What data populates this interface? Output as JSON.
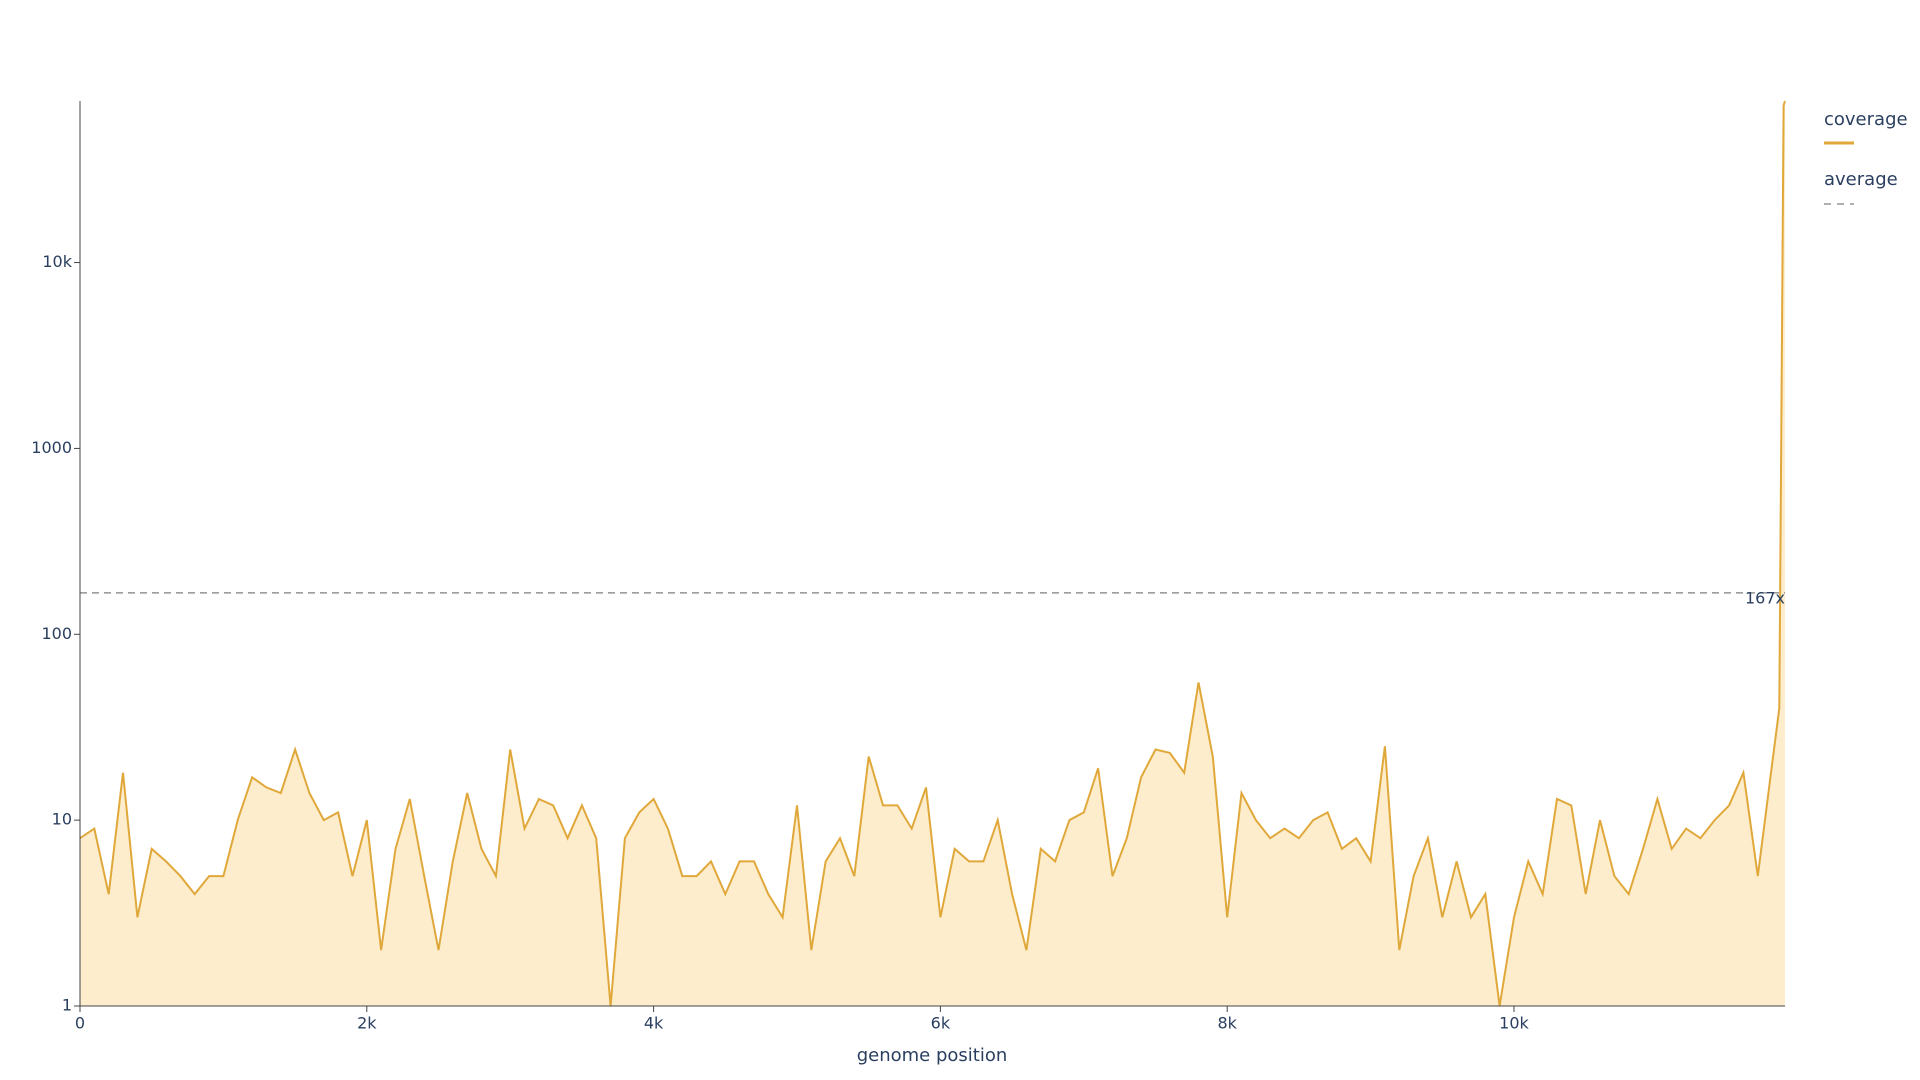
{
  "chart_data": {
    "type": "area",
    "xlabel": "genome position",
    "x": [
      0,
      100,
      200,
      300,
      400,
      500,
      600,
      700,
      800,
      900,
      1000,
      1100,
      1200,
      1300,
      1400,
      1500,
      1600,
      1700,
      1800,
      1900,
      2000,
      2100,
      2200,
      2300,
      2400,
      2500,
      2600,
      2700,
      2800,
      2900,
      3000,
      3100,
      3200,
      3300,
      3400,
      3500,
      3600,
      3700,
      3800,
      3900,
      4000,
      4100,
      4200,
      4300,
      4400,
      4500,
      4600,
      4700,
      4800,
      4900,
      5000,
      5100,
      5200,
      5300,
      5400,
      5500,
      5600,
      5700,
      5800,
      5900,
      6000,
      6100,
      6200,
      6300,
      6400,
      6500,
      6600,
      6700,
      6800,
      6900,
      7000,
      7100,
      7200,
      7300,
      7400,
      7500,
      7600,
      7700,
      7800,
      7900,
      8000,
      8100,
      8200,
      8300,
      8400,
      8500,
      8600,
      8700,
      8800,
      8900,
      9000,
      9100,
      9200,
      9300,
      9400,
      9500,
      9600,
      9700,
      9800,
      9900,
      10000,
      10100,
      10200,
      10300,
      10400,
      10500,
      10600,
      10700,
      10800,
      10900,
      11000,
      11100,
      11200,
      11300,
      11400,
      11500,
      11600,
      11700,
      11800,
      11850,
      11870,
      11880,
      11890
    ],
    "series": [
      {
        "name": "coverage",
        "color": "#e0a83a",
        "fill": "#fdedcd",
        "values": [
          8,
          9,
          4,
          18,
          3,
          7,
          6,
          5,
          4,
          5,
          5,
          10,
          17,
          15,
          14,
          24,
          14,
          10,
          11,
          5,
          10,
          2,
          7,
          13,
          5,
          2,
          6,
          14,
          7,
          5,
          24,
          9,
          13,
          12,
          8,
          12,
          8,
          1,
          8,
          11,
          13,
          9,
          5,
          5,
          6,
          4,
          6,
          6,
          4,
          3,
          12,
          2,
          6,
          8,
          5,
          22,
          12,
          12,
          9,
          15,
          3,
          7,
          6,
          6,
          10,
          4,
          2,
          7,
          6,
          10,
          11,
          19,
          5,
          8,
          17,
          24,
          23,
          18,
          55,
          22,
          3,
          14,
          10,
          8,
          9,
          8,
          10,
          11,
          7,
          8,
          6,
          25,
          2,
          5,
          8,
          3,
          6,
          3,
          4,
          1,
          3,
          6,
          4,
          13,
          12,
          4,
          10,
          5,
          4,
          7,
          13,
          7,
          9,
          8,
          10,
          12,
          18,
          5,
          20,
          40,
          5000,
          70000,
          74000
        ]
      }
    ],
    "average": {
      "name": "average",
      "value": 167,
      "label": "167x",
      "color": "#7f7f7f"
    },
    "xlim": [
      0,
      11890
    ],
    "ylim": [
      1,
      74000
    ],
    "ylog": true,
    "xticks": [
      0,
      {
        "value": 2000,
        "label": "2k"
      },
      {
        "value": 4000,
        "label": "4k"
      },
      {
        "value": 6000,
        "label": "6k"
      },
      {
        "value": 8000,
        "label": "8k"
      },
      {
        "value": 10000,
        "label": "10k"
      }
    ],
    "yticks": [
      1,
      10,
      100,
      1000,
      {
        "value": 10000,
        "label": "10k"
      }
    ]
  }
}
